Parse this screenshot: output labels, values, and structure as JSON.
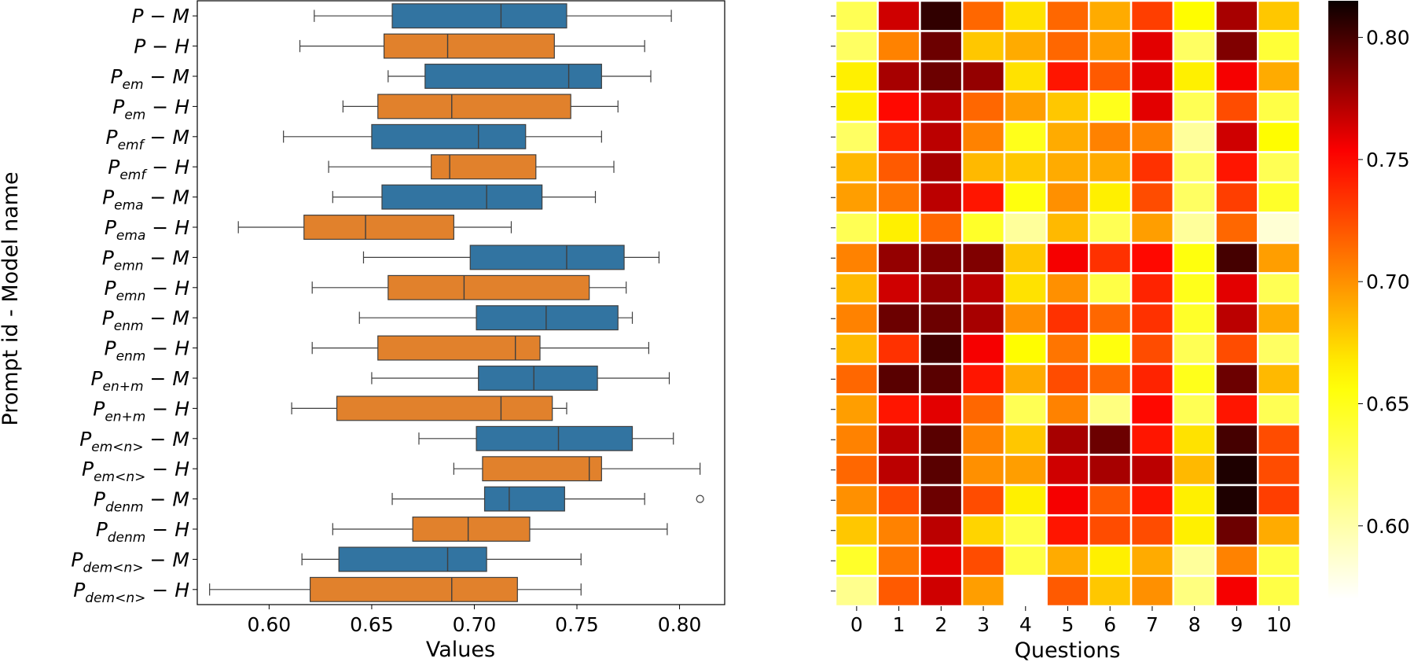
{
  "chart_data": [
    {
      "type": "box",
      "xlabel": "Values",
      "ylabel": "Prompt id - Model name",
      "xlim": [
        0.565,
        0.822
      ],
      "xticks": [
        0.6,
        0.65,
        0.7,
        0.75,
        0.8
      ],
      "xtick_labels": [
        "0.60",
        "0.65",
        "0.70",
        "0.75",
        "0.80"
      ],
      "series_colors": {
        "M": "#3274a1",
        "H": "#e1812c"
      },
      "rows": [
        {
          "base": "P",
          "sub": "",
          "model": "M",
          "whislo": 0.622,
          "q1": 0.66,
          "med": 0.713,
          "q3": 0.745,
          "whishi": 0.796,
          "fliers": []
        },
        {
          "base": "P",
          "sub": "",
          "model": "H",
          "whislo": 0.615,
          "q1": 0.656,
          "med": 0.687,
          "q3": 0.739,
          "whishi": 0.783,
          "fliers": []
        },
        {
          "base": "P",
          "sub": "em",
          "model": "M",
          "whislo": 0.658,
          "q1": 0.676,
          "med": 0.746,
          "q3": 0.762,
          "whishi": 0.786,
          "fliers": []
        },
        {
          "base": "P",
          "sub": "em",
          "model": "H",
          "whislo": 0.636,
          "q1": 0.653,
          "med": 0.689,
          "q3": 0.747,
          "whishi": 0.77,
          "fliers": []
        },
        {
          "base": "P",
          "sub": "emf",
          "model": "M",
          "whislo": 0.607,
          "q1": 0.65,
          "med": 0.702,
          "q3": 0.725,
          "whishi": 0.762,
          "fliers": []
        },
        {
          "base": "P",
          "sub": "emf",
          "model": "H",
          "whislo": 0.629,
          "q1": 0.679,
          "med": 0.688,
          "q3": 0.73,
          "whishi": 0.768,
          "fliers": []
        },
        {
          "base": "P",
          "sub": "ema",
          "model": "M",
          "whislo": 0.631,
          "q1": 0.655,
          "med": 0.706,
          "q3": 0.733,
          "whishi": 0.759,
          "fliers": []
        },
        {
          "base": "P",
          "sub": "ema",
          "model": "H",
          "whislo": 0.585,
          "q1": 0.617,
          "med": 0.647,
          "q3": 0.69,
          "whishi": 0.718,
          "fliers": []
        },
        {
          "base": "P",
          "sub": "emn",
          "model": "M",
          "whislo": 0.646,
          "q1": 0.698,
          "med": 0.745,
          "q3": 0.773,
          "whishi": 0.79,
          "fliers": []
        },
        {
          "base": "P",
          "sub": "emn",
          "model": "H",
          "whislo": 0.621,
          "q1": 0.658,
          "med": 0.695,
          "q3": 0.756,
          "whishi": 0.774,
          "fliers": []
        },
        {
          "base": "P",
          "sub": "enm",
          "model": "M",
          "whislo": 0.644,
          "q1": 0.701,
          "med": 0.735,
          "q3": 0.77,
          "whishi": 0.777,
          "fliers": []
        },
        {
          "base": "P",
          "sub": "enm",
          "model": "H",
          "whislo": 0.621,
          "q1": 0.653,
          "med": 0.72,
          "q3": 0.732,
          "whishi": 0.785,
          "fliers": []
        },
        {
          "base": "P",
          "sub": "en+m",
          "model": "M",
          "whislo": 0.65,
          "q1": 0.702,
          "med": 0.729,
          "q3": 0.76,
          "whishi": 0.795,
          "fliers": []
        },
        {
          "base": "P",
          "sub": "en+m",
          "model": "H",
          "whislo": 0.611,
          "q1": 0.633,
          "med": 0.713,
          "q3": 0.738,
          "whishi": 0.745,
          "fliers": []
        },
        {
          "base": "P",
          "sub": "em<n>",
          "model": "M",
          "whislo": 0.673,
          "q1": 0.701,
          "med": 0.741,
          "q3": 0.777,
          "whishi": 0.797,
          "fliers": []
        },
        {
          "base": "P",
          "sub": "em<n>",
          "model": "H",
          "whislo": 0.69,
          "q1": 0.704,
          "med": 0.756,
          "q3": 0.762,
          "whishi": 0.81,
          "fliers": []
        },
        {
          "base": "P",
          "sub": "denm",
          "model": "M",
          "whislo": 0.66,
          "q1": 0.705,
          "med": 0.717,
          "q3": 0.744,
          "whishi": 0.783,
          "fliers": [
            0.81
          ]
        },
        {
          "base": "P",
          "sub": "denm",
          "model": "H",
          "whislo": 0.631,
          "q1": 0.67,
          "med": 0.697,
          "q3": 0.727,
          "whishi": 0.794,
          "fliers": []
        },
        {
          "base": "P",
          "sub": "dem<n>",
          "model": "M",
          "whislo": 0.616,
          "q1": 0.634,
          "med": 0.687,
          "q3": 0.706,
          "whishi": 0.752,
          "fliers": []
        },
        {
          "base": "P",
          "sub": "dem<n>",
          "model": "H",
          "whislo": 0.571,
          "q1": 0.62,
          "med": 0.689,
          "q3": 0.721,
          "whishi": 0.752,
          "fliers": []
        }
      ]
    },
    {
      "type": "heatmap",
      "xlabel": "Questions",
      "x_categories": [
        "0",
        "1",
        "2",
        "3",
        "4",
        "5",
        "6",
        "7",
        "8",
        "9",
        "10"
      ],
      "colormap": "hot_r",
      "vmin": 0.57,
      "vmax": 0.815,
      "colorbar_ticks": [
        0.6,
        0.65,
        0.7,
        0.75,
        0.8
      ],
      "colorbar_tick_labels": [
        "0.60",
        "0.65",
        "0.70",
        "0.75",
        "0.80"
      ],
      "missing_color": "#ffffff",
      "values": [
        [
          0.63,
          0.765,
          0.805,
          0.715,
          0.67,
          0.715,
          0.69,
          0.73,
          0.66,
          0.775,
          0.68
        ],
        [
          0.625,
          0.705,
          0.79,
          0.68,
          0.69,
          0.715,
          0.695,
          0.76,
          0.625,
          0.785,
          0.64
        ],
        [
          0.665,
          0.775,
          0.79,
          0.78,
          0.67,
          0.745,
          0.72,
          0.76,
          0.665,
          0.755,
          0.69
        ],
        [
          0.665,
          0.75,
          0.77,
          0.715,
          0.695,
          0.68,
          0.65,
          0.76,
          0.63,
          0.725,
          0.635
        ],
        [
          0.625,
          0.74,
          0.77,
          0.705,
          0.65,
          0.69,
          0.705,
          0.705,
          0.605,
          0.765,
          0.66
        ],
        [
          0.685,
          0.72,
          0.775,
          0.685,
          0.68,
          0.69,
          0.69,
          0.735,
          0.625,
          0.745,
          0.63
        ],
        [
          0.695,
          0.71,
          0.77,
          0.745,
          0.655,
          0.7,
          0.665,
          0.725,
          0.625,
          0.73,
          0.645
        ],
        [
          0.63,
          0.665,
          0.715,
          0.645,
          0.605,
          0.685,
          0.63,
          0.695,
          0.605,
          0.715,
          0.585
        ],
        [
          0.705,
          0.78,
          0.785,
          0.785,
          0.68,
          0.755,
          0.735,
          0.75,
          0.655,
          0.8,
          0.695
        ],
        [
          0.685,
          0.765,
          0.78,
          0.77,
          0.67,
          0.7,
          0.635,
          0.74,
          0.65,
          0.76,
          0.63
        ],
        [
          0.705,
          0.79,
          0.79,
          0.775,
          0.7,
          0.735,
          0.715,
          0.735,
          0.645,
          0.77,
          0.69
        ],
        [
          0.685,
          0.735,
          0.8,
          0.755,
          0.66,
          0.71,
          0.655,
          0.725,
          0.63,
          0.725,
          0.625
        ],
        [
          0.715,
          0.795,
          0.795,
          0.745,
          0.69,
          0.725,
          0.715,
          0.74,
          0.65,
          0.79,
          0.685
        ],
        [
          0.695,
          0.745,
          0.76,
          0.715,
          0.63,
          0.705,
          0.615,
          0.75,
          0.63,
          0.745,
          0.63
        ],
        [
          0.705,
          0.77,
          0.795,
          0.705,
          0.68,
          0.775,
          0.79,
          0.745,
          0.67,
          0.8,
          0.725
        ],
        [
          0.715,
          0.77,
          0.795,
          0.7,
          0.695,
          0.765,
          0.775,
          0.77,
          0.685,
          0.81,
          0.725
        ],
        [
          0.7,
          0.725,
          0.79,
          0.725,
          0.665,
          0.755,
          0.72,
          0.745,
          0.665,
          0.81,
          0.73
        ],
        [
          0.68,
          0.705,
          0.77,
          0.675,
          0.635,
          0.745,
          0.725,
          0.725,
          0.665,
          0.79,
          0.69
        ],
        [
          0.645,
          0.71,
          0.76,
          0.725,
          0.635,
          0.69,
          0.665,
          0.69,
          0.605,
          0.705,
          0.635
        ],
        [
          0.61,
          0.72,
          0.765,
          0.695,
          null,
          0.72,
          0.68,
          0.7,
          0.615,
          0.755,
          0.635
        ]
      ]
    }
  ]
}
